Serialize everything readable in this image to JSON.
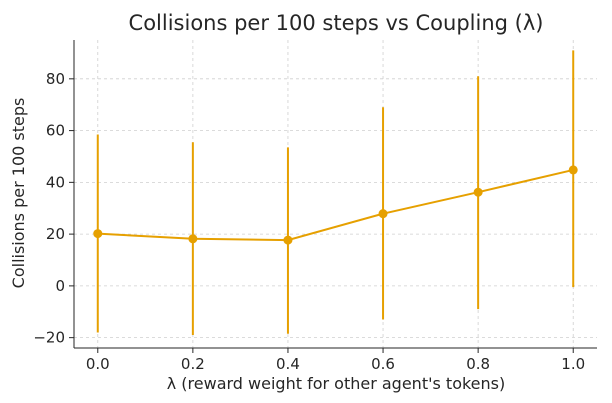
{
  "chart_data": {
    "type": "line",
    "title": "Collisions per 100 steps vs Coupling (λ)",
    "xlabel": "λ (reward weight for other agent's tokens)",
    "ylabel": "Collisions per 100 steps",
    "xlim": [
      -0.05,
      1.05
    ],
    "ylim": [
      -24,
      95
    ],
    "xticks": [
      0.0,
      0.2,
      0.4,
      0.6,
      0.8,
      1.0
    ],
    "xtick_labels": [
      "0.0",
      "0.2",
      "0.4",
      "0.6",
      "0.8",
      "1.0"
    ],
    "yticks": [
      -20,
      0,
      20,
      40,
      60,
      80
    ],
    "ytick_labels": [
      "−20",
      "0",
      "20",
      "40",
      "60",
      "80"
    ],
    "grid": true,
    "series": [
      {
        "color": "#e6a000",
        "x": [
          0.0,
          0.2,
          0.4,
          0.6,
          0.8,
          1.0
        ],
        "y": [
          20.2,
          18.2,
          17.7,
          27.9,
          36.2,
          44.8
        ],
        "err_low": [
          -18.0,
          -19.0,
          -18.5,
          -13.0,
          -9.0,
          -0.5
        ],
        "err_high": [
          58.5,
          55.5,
          53.5,
          69.0,
          81.0,
          91.0
        ]
      }
    ]
  }
}
